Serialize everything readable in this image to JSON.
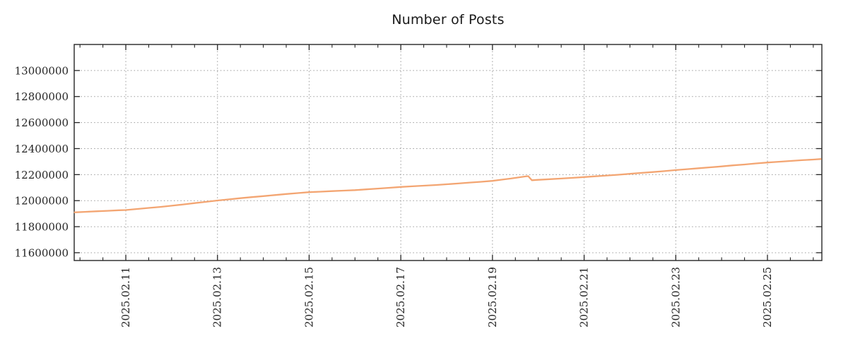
{
  "chart_data": {
    "type": "line",
    "title": "Number of Posts",
    "legend": "none",
    "grid": "dotted",
    "colors": {
      "line": "#f3a572",
      "grid": "#9b9b9b",
      "axis": "#262626",
      "tick_text": "#262626",
      "title_text": "#1a1a1a",
      "background": "#ffffff"
    },
    "x_axis": {
      "tick_labels": [
        "2025.02.11",
        "2025.02.13",
        "2025.02.15",
        "2025.02.17",
        "2025.02.19",
        "2025.02.21",
        "2025.02.23",
        "2025.02.25"
      ],
      "tick_days": [
        11,
        13,
        15,
        17,
        19,
        21,
        23,
        25
      ],
      "minor_tick_step_days": 0.5,
      "minor_tick_range_days": [
        10,
        26
      ],
      "range_days": [
        9.874,
        26.187
      ],
      "label_rotation_deg": -90
    },
    "y_axis": {
      "tick_labels": [
        "11600000",
        "11800000",
        "12000000",
        "12200000",
        "12400000",
        "12600000",
        "12800000",
        "13000000"
      ],
      "tick_values": [
        11600000,
        11800000,
        12000000,
        12200000,
        12400000,
        12600000,
        12800000,
        13000000
      ],
      "range": [
        11540000,
        13200000
      ]
    },
    "series": [
      {
        "name": "Number of Posts",
        "points": [
          [
            9.87,
            11910000
          ],
          [
            10.1,
            11914000
          ],
          [
            10.35,
            11918000
          ],
          [
            10.6,
            11922000
          ],
          [
            10.85,
            11926000
          ],
          [
            11.0,
            11928000
          ],
          [
            11.25,
            11936000
          ],
          [
            11.5,
            11944000
          ],
          [
            11.75,
            11952000
          ],
          [
            12.0,
            11961000
          ],
          [
            12.25,
            11971000
          ],
          [
            12.5,
            11981000
          ],
          [
            12.75,
            11991000
          ],
          [
            13.0,
            12001000
          ],
          [
            13.25,
            12010000
          ],
          [
            13.5,
            12019000
          ],
          [
            13.75,
            12027000
          ],
          [
            14.0,
            12035000
          ],
          [
            14.25,
            12043000
          ],
          [
            14.5,
            12051000
          ],
          [
            14.75,
            12058000
          ],
          [
            15.0,
            12065000
          ],
          [
            15.25,
            12069000
          ],
          [
            15.5,
            12073000
          ],
          [
            15.75,
            12077000
          ],
          [
            16.0,
            12081000
          ],
          [
            16.25,
            12087000
          ],
          [
            16.5,
            12093000
          ],
          [
            16.75,
            12099000
          ],
          [
            17.0,
            12105000
          ],
          [
            17.25,
            12110000
          ],
          [
            17.5,
            12115000
          ],
          [
            17.75,
            12120000
          ],
          [
            18.0,
            12126000
          ],
          [
            18.25,
            12132000
          ],
          [
            18.5,
            12139000
          ],
          [
            18.75,
            12145000
          ],
          [
            19.0,
            12152000
          ],
          [
            19.2,
            12161000
          ],
          [
            19.4,
            12170000
          ],
          [
            19.6,
            12180000
          ],
          [
            19.72,
            12186000
          ],
          [
            19.78,
            12188000
          ],
          [
            19.82,
            12172000
          ],
          [
            19.86,
            12157000
          ],
          [
            20.0,
            12160000
          ],
          [
            20.25,
            12165000
          ],
          [
            20.5,
            12170000
          ],
          [
            20.75,
            12175000
          ],
          [
            21.0,
            12181000
          ],
          [
            21.25,
            12187000
          ],
          [
            21.5,
            12193000
          ],
          [
            21.75,
            12199000
          ],
          [
            22.0,
            12206000
          ],
          [
            22.25,
            12213000
          ],
          [
            22.5,
            12220000
          ],
          [
            22.75,
            12227000
          ],
          [
            23.0,
            12235000
          ],
          [
            23.25,
            12242000
          ],
          [
            23.5,
            12249000
          ],
          [
            23.75,
            12256000
          ],
          [
            24.0,
            12263000
          ],
          [
            24.25,
            12271000
          ],
          [
            24.5,
            12278000
          ],
          [
            24.75,
            12286000
          ],
          [
            25.0,
            12293000
          ],
          [
            25.25,
            12299000
          ],
          [
            25.5,
            12305000
          ],
          [
            25.75,
            12311000
          ],
          [
            26.0,
            12316000
          ],
          [
            26.18,
            12320000
          ]
        ]
      }
    ]
  }
}
